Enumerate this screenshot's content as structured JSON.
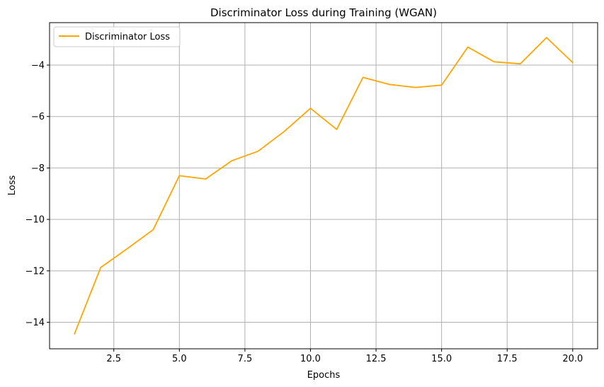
{
  "chart_data": {
    "type": "line",
    "title": "Discriminator Loss during Training (WGAN)",
    "xlabel": "Epochs",
    "ylabel": "Loss",
    "xlim": [
      0.05,
      20.95
    ],
    "ylim": [
      -15.03,
      -2.35
    ],
    "xticks": [
      2.5,
      5.0,
      7.5,
      10.0,
      12.5,
      15.0,
      17.5,
      20.0
    ],
    "xtick_labels": [
      "2.5",
      "5.0",
      "7.5",
      "10.0",
      "12.5",
      "15.0",
      "17.5",
      "20.0"
    ],
    "yticks": [
      -14,
      -12,
      -10,
      -8,
      -6,
      -4
    ],
    "ytick_labels": [
      "−14",
      "−12",
      "−10",
      "−8",
      "−6",
      "−4"
    ],
    "grid": true,
    "legend_position": "top-left",
    "series": [
      {
        "name": "Discriminator Loss",
        "color": "#ffa500",
        "x": [
          1,
          2,
          3,
          4,
          5,
          6,
          7,
          8,
          9,
          10,
          11,
          12,
          13,
          14,
          15,
          16,
          17,
          18,
          19,
          20
        ],
        "y": [
          -14.45,
          -11.87,
          -11.15,
          -10.4,
          -8.3,
          -8.43,
          -7.72,
          -7.35,
          -6.58,
          -5.68,
          -6.5,
          -4.48,
          -4.75,
          -4.87,
          -4.78,
          -3.3,
          -3.87,
          -3.95,
          -2.93,
          -3.9
        ]
      }
    ]
  }
}
